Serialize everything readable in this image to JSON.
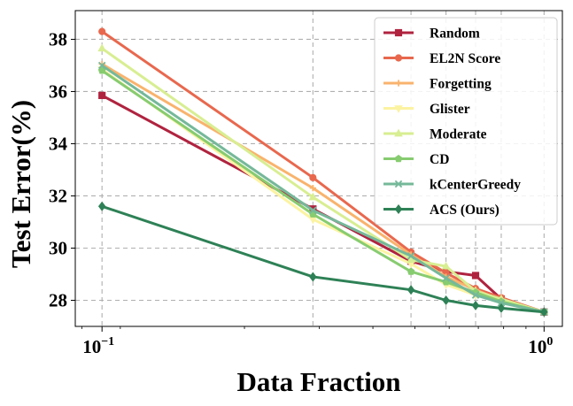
{
  "chart_data": {
    "type": "line",
    "xlabel": "Data Fraction",
    "ylabel": "Test Error(%)",
    "x_scale": "log",
    "xlim": [
      0.087,
      1.1
    ],
    "ylim": [
      27.0,
      39.1
    ],
    "x_ticks": [
      {
        "value": 0.1,
        "base": "10",
        "exp": "−1"
      },
      {
        "value": 1.0,
        "base": "10",
        "exp": "0"
      }
    ],
    "y_ticks": [
      28,
      30,
      32,
      34,
      36,
      38
    ],
    "grid": true,
    "grid_style": "dashed",
    "legend_position": "top-right",
    "x": [
      0.1,
      0.3,
      0.5,
      0.6,
      0.7,
      0.8,
      1.0
    ],
    "series": [
      {
        "name": "Random",
        "color": "#b0233f",
        "marker": "square",
        "values": [
          35.85,
          31.5,
          29.5,
          29.1,
          28.95,
          28.05,
          27.55
        ]
      },
      {
        "name": "EL2N Score",
        "color": "#e8684e",
        "marker": "circle",
        "values": [
          38.3,
          32.7,
          29.85,
          29.05,
          28.45,
          28.1,
          27.55
        ]
      },
      {
        "name": "Forgetting",
        "color": "#f9b36d",
        "marker": "plus",
        "values": [
          37.05,
          32.3,
          29.75,
          28.9,
          28.4,
          28.0,
          27.55
        ]
      },
      {
        "name": "Glister",
        "color": "#fcf3a2",
        "marker": "triangle-down",
        "values": [
          36.85,
          31.1,
          29.4,
          28.6,
          28.2,
          27.95,
          27.55
        ]
      },
      {
        "name": "Moderate",
        "color": "#d8ee92",
        "marker": "triangle-up",
        "values": [
          37.65,
          31.95,
          29.55,
          29.3,
          28.35,
          28.05,
          27.55
        ]
      },
      {
        "name": "CD",
        "color": "#87cc70",
        "marker": "pentagon",
        "values": [
          36.8,
          31.3,
          29.1,
          28.7,
          28.3,
          27.95,
          27.55
        ]
      },
      {
        "name": "kCenterGreedy",
        "color": "#75b89a",
        "marker": "x",
        "values": [
          37.0,
          31.45,
          29.7,
          28.85,
          28.2,
          27.9,
          27.55
        ]
      },
      {
        "name": "ACS (Ours)",
        "color": "#2e8156",
        "marker": "diamond",
        "values": [
          31.6,
          28.9,
          28.4,
          28.0,
          27.8,
          27.7,
          27.55
        ]
      }
    ]
  }
}
